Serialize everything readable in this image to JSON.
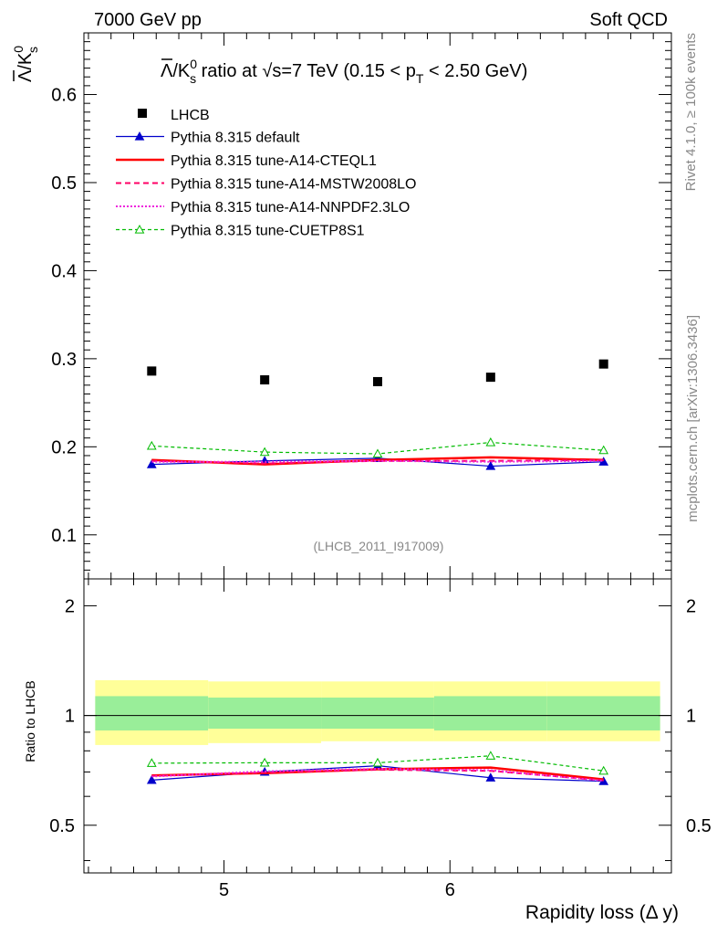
{
  "header": {
    "left": "7000 GeV pp",
    "right": "Soft QCD"
  },
  "side": {
    "rivet": "Rivet 4.1.0, ≥ 100k events",
    "mcplots": "mcplots.cern.ch [arXiv:1306.3436]"
  },
  "chart_data": {
    "type": "scatter",
    "title_parts": {
      "ratio_label": "/K",
      "ratio_sup": "0",
      "ratio_sub": "s",
      "mid": " ratio at ",
      "sqrt_s": "s",
      "energy": "=7 TeV (0.15 < p",
      "pt_sub": "T",
      "end": " < 2.50 GeV)"
    },
    "ylabel_parts": {
      "main": "/K",
      "sup": "0",
      "sub": "s"
    },
    "lambda_symbol": "Λ",
    "sqrt_symbol": "√",
    "xlabel": "Rapidity loss (Δ y)",
    "ratio_ylabel": "Ratio to LHCB",
    "analysis_id": "(LHCB_2011_I917009)",
    "x": [
      4.68,
      5.18,
      5.68,
      6.18,
      6.68
    ],
    "x_edges": [
      4.43,
      4.93,
      5.43,
      5.93,
      6.43,
      6.93
    ],
    "xlim": [
      4.38,
      6.98
    ],
    "ylim": [
      0.05,
      0.67
    ],
    "ratio_ylim": [
      0.37,
      2.37
    ],
    "xticks": [
      5,
      6
    ],
    "xtick_labels": [
      "5",
      "6"
    ],
    "yticks": [
      0.1,
      0.2,
      0.3,
      0.4,
      0.5,
      0.6
    ],
    "ytick_labels": [
      "0.1",
      "0.2",
      "0.3",
      "0.4",
      "0.5",
      "0.6"
    ],
    "ratio_yticks": [
      0.5,
      1,
      2
    ],
    "ratio_ytick_labels": [
      "0.5",
      "1",
      "2"
    ],
    "band_inner": [
      [
        0.91,
        1.13
      ],
      [
        0.92,
        1.12
      ],
      [
        0.92,
        1.12
      ],
      [
        0.91,
        1.13
      ],
      [
        0.91,
        1.13
      ]
    ],
    "band_outer": [
      [
        0.83,
        1.25
      ],
      [
        0.84,
        1.24
      ],
      [
        0.85,
        1.24
      ],
      [
        0.85,
        1.24
      ],
      [
        0.85,
        1.24
      ]
    ],
    "data_series": {
      "name": "LHCB",
      "values": [
        0.286,
        0.276,
        0.274,
        0.279,
        0.294
      ]
    },
    "series": [
      {
        "name": "Pythia 8.315 default",
        "color": "#0000cc",
        "dash": "",
        "width": 1.2,
        "marker": "triangle-filled",
        "values": [
          0.18,
          0.184,
          0.187,
          0.178,
          0.183
        ],
        "ratio": [
          0.665,
          0.7,
          0.728,
          0.675,
          0.66
        ]
      },
      {
        "name": "Pythia 8.315 tune-A14-CTEQL1",
        "color": "#ff0000",
        "dash": "",
        "width": 2.5,
        "marker": "none",
        "values": [
          0.185,
          0.18,
          0.185,
          0.188,
          0.185
        ],
        "ratio": [
          0.685,
          0.695,
          0.712,
          0.72,
          0.668
        ]
      },
      {
        "name": "Pythia 8.315 tune-A14-MSTW2008LO",
        "color": "#ff0066",
        "dash": "6,4",
        "width": 2,
        "marker": "none",
        "values": [
          0.184,
          0.181,
          0.184,
          0.184,
          0.185
        ],
        "ratio": [
          0.683,
          0.697,
          0.71,
          0.705,
          0.664
        ]
      },
      {
        "name": "Pythia 8.315 tune-A14-NNPDF2.3LO",
        "color": "#ee22dd",
        "dash": "2,2",
        "width": 2,
        "marker": "none",
        "values": [
          0.183,
          0.183,
          0.184,
          0.183,
          0.184
        ],
        "ratio": [
          0.68,
          0.703,
          0.714,
          0.708,
          0.662
        ]
      },
      {
        "name": "Pythia 8.315 tune-CUETP8S1",
        "color": "#00bb00",
        "dash": "4,3",
        "width": 1.2,
        "marker": "triangle-open",
        "values": [
          0.201,
          0.194,
          0.192,
          0.205,
          0.196
        ],
        "ratio": [
          0.74,
          0.742,
          0.742,
          0.775,
          0.705
        ]
      }
    ]
  }
}
